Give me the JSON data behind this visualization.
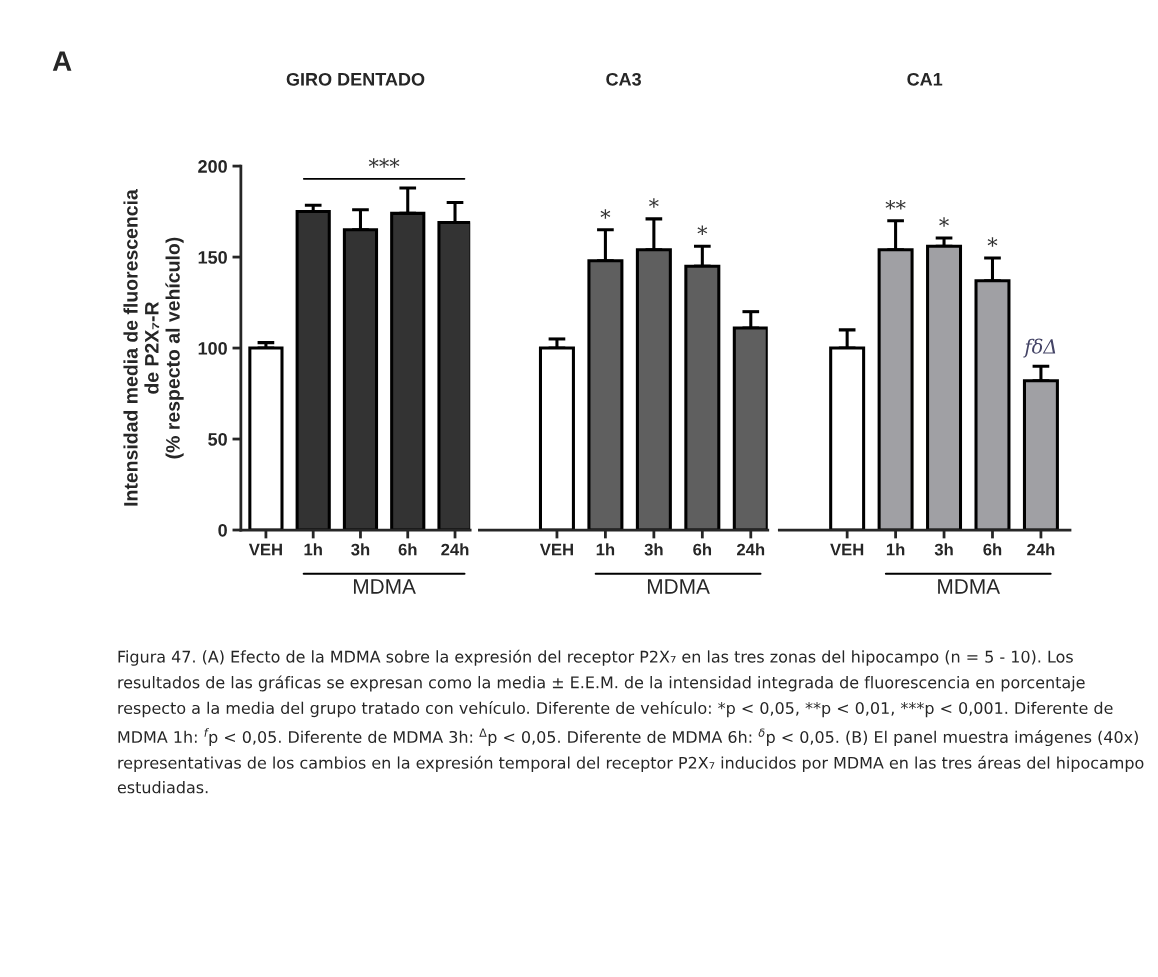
{
  "chart_data": [
    {
      "type": "bar",
      "title": "GIRO DENTADO",
      "ylabel": "Intensidad media de fluorescencia\nde P2X₇-R\n(% respecto al vehículo)",
      "categories": [
        "VEH",
        "1h",
        "3h",
        "6h",
        "24h"
      ],
      "values": [
        100,
        175,
        165,
        174,
        169
      ],
      "errors": [
        3,
        3.5,
        11,
        14,
        11
      ],
      "colors": [
        "#ffffff",
        "#333333",
        "#333333",
        "#333333",
        "#333333"
      ],
      "ylim": [
        0,
        200
      ],
      "yticks": [
        0,
        50,
        100,
        150,
        200
      ],
      "grid": false,
      "annotations": [
        "***",
        "MDMA",
        "A",
        "Figura 47. (A) Efecto de la MDMA sobre la expresión del receptor P2X₇ en las tres zonas del hipocampo (n = 5 - 10). Los resultados de las gráficas se expresan como la media ± E.E.M. de la intensidad integrada de fluorescencia en porcentaje respecto a la media del grupo tratado con vehículo. Diferente de vehículo: *p < 0,05, **p < 0,01, ***p < 0,001. Diferente de MDMA 1h: $^{f}$p < 0,05. Diferente de MDMA 3h: $^{Δ}$p < 0,05. Diferente de MDMA 6h: $^{δ}$p < 0,05. (B) El panel muestra imágenes (40x) representativas de los cambios en la expresión temporal del receptor P2X₇ inducidos por MDMA en las tres áreas del hipocampo estudiadas."
      ]
    },
    {
      "type": "bar",
      "title": "CA3",
      "categories": [
        "VEH",
        "1h",
        "3h",
        "6h",
        "24h"
      ],
      "values": [
        100,
        148,
        154,
        145,
        111
      ],
      "errors": [
        5,
        17,
        17,
        11,
        9
      ],
      "colors": [
        "#ffffff",
        "#5f5f5f",
        "#5f5f5f",
        "#5f5f5f",
        "#5f5f5f"
      ],
      "ylim": [
        0,
        200
      ],
      "yticks": [
        0,
        50,
        100,
        150,
        200
      ],
      "tick_labels": "x",
      "grid": false,
      "annotations": [
        "MDMA",
        "*",
        "*",
        "*"
      ]
    },
    {
      "type": "bar",
      "title": "CA1",
      "categories": [
        "VEH",
        "1h",
        "3h",
        "6h",
        "24h"
      ],
      "values": [
        100,
        154,
        156,
        137,
        82
      ],
      "errors": [
        10,
        16,
        4.5,
        12.5,
        8
      ],
      "colors": [
        "#ffffff",
        "#a0a0a4",
        "#a0a0a4",
        "#a0a0a4",
        "#a0a0a4"
      ],
      "ylim": [
        0,
        200
      ],
      "yticks": [
        0,
        50,
        100,
        150,
        200
      ],
      "tick_labels": "x",
      "grid": false,
      "annotations": [
        "MDMA",
        "**",
        "*",
        "*",
        "fδΔ"
      ]
    }
  ]
}
